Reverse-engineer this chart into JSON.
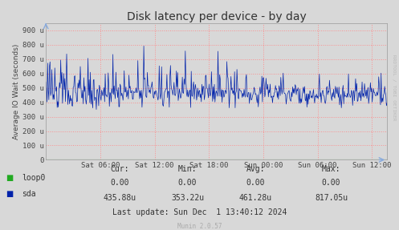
{
  "title": "Disk latency per device - by day",
  "ylabel": "Average IO Wait (seconds)",
  "yticks": [
    0,
    100,
    200,
    300,
    400,
    500,
    600,
    700,
    800,
    900
  ],
  "ytick_labels": [
    "0",
    "100 u",
    "200 u",
    "300 u",
    "400 u",
    "500 u",
    "600 u",
    "700 u",
    "800 u",
    "900 u"
  ],
  "ylim": [
    0,
    950
  ],
  "xtick_labels": [
    "Sat 06:00",
    "Sat 12:00",
    "Sat 18:00",
    "Sun 00:00",
    "Sun 06:00",
    "Sun 12:00"
  ],
  "tick_hours": [
    6,
    12,
    18,
    24,
    30,
    36
  ],
  "total_hours": 37.67,
  "bg_color": "#d8d8d8",
  "plot_bg_color": "#d8d8d8",
  "grid_color": "#ff8888",
  "line_color_sda": "#0022aa",
  "line_color_loop0": "#22aa22",
  "legend_items": [
    "loop0",
    "sda"
  ],
  "legend_colors": [
    "#22aa22",
    "#0022aa"
  ],
  "cur_loop0": "0.00",
  "cur_sda": "435.88u",
  "min_loop0": "0.00",
  "min_sda": "353.22u",
  "avg_loop0": "0.00",
  "avg_sda": "461.28u",
  "max_loop0": "0.00",
  "max_sda": "817.05u",
  "last_update": "Last update: Sun Dec  1 13:40:12 2024",
  "munin_version": "Munin 2.0.57",
  "rrdtool_text": "RRDTOOL / TOBI OETIKER",
  "n_points": 576
}
